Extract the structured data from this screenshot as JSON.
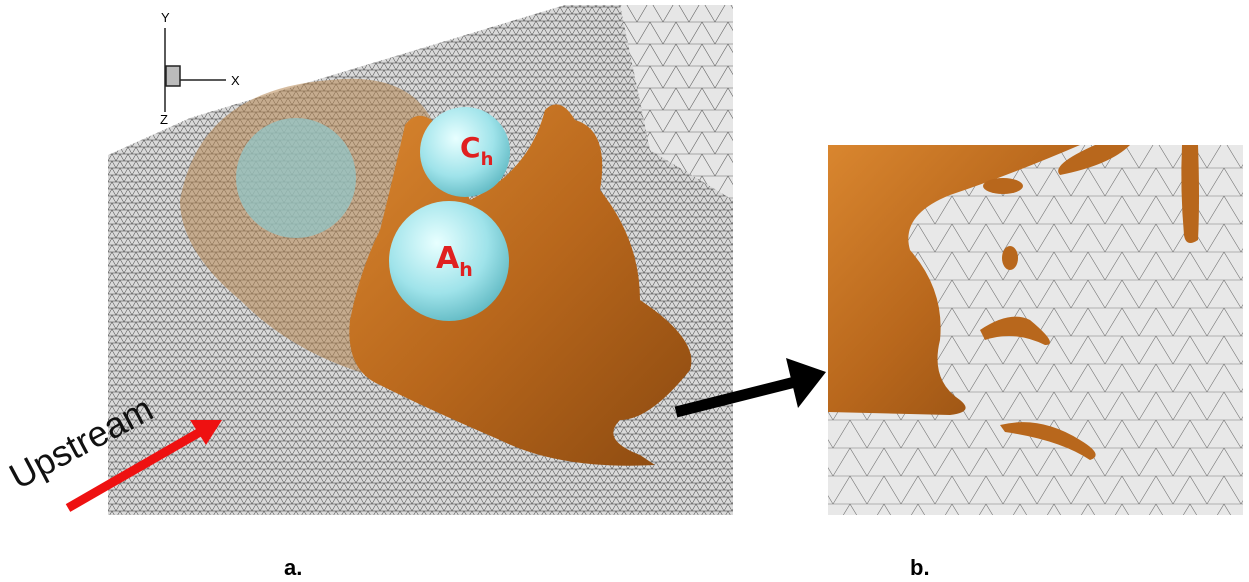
{
  "figure": {
    "axes": {
      "y": "Y",
      "x": "X",
      "z": "Z"
    },
    "sphere_c": {
      "base": "C",
      "sub": "h"
    },
    "sphere_a": {
      "base": "A",
      "sub": "h"
    },
    "flow_label": "Upstream",
    "panels": [
      "a.",
      "b."
    ]
  }
}
